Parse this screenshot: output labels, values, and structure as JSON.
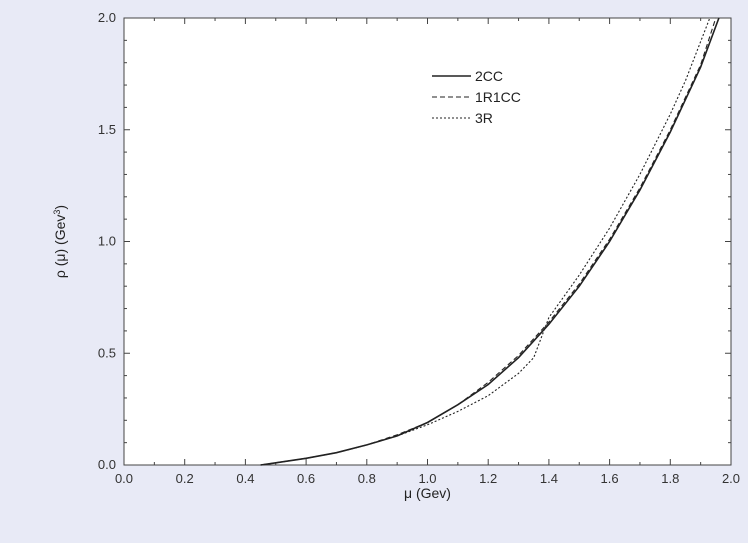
{
  "chart_data": {
    "type": "line",
    "xlabel": "μ (Gev)",
    "ylabel_parts": {
      "prefix": "ρ (μ) (Gev",
      "sup": "3",
      "suffix": ")"
    },
    "xlim": [
      0.0,
      2.0
    ],
    "ylim": [
      0.0,
      2.0
    ],
    "x_ticks": [
      "0.0",
      "0.2",
      "0.4",
      "0.6",
      "0.8",
      "1.0",
      "1.2",
      "1.4",
      "1.6",
      "1.8",
      "2.0"
    ],
    "y_ticks": [
      "0.0",
      "0.5",
      "1.0",
      "1.5",
      "2.0"
    ],
    "grid": false,
    "legend_position": "top-right",
    "series": [
      {
        "name": "2CC",
        "style": "solid",
        "x": [
          0.45,
          0.5,
          0.6,
          0.7,
          0.8,
          0.9,
          1.0,
          1.1,
          1.2,
          1.3,
          1.4,
          1.5,
          1.6,
          1.7,
          1.8,
          1.9,
          1.96
        ],
        "y": [
          0.0,
          0.01,
          0.03,
          0.055,
          0.09,
          0.13,
          0.19,
          0.27,
          0.36,
          0.48,
          0.63,
          0.8,
          1.0,
          1.23,
          1.49,
          1.78,
          2.0
        ]
      },
      {
        "name": "1R1CC",
        "style": "dashed",
        "x": [
          0.45,
          0.5,
          0.6,
          0.7,
          0.8,
          0.9,
          1.0,
          1.1,
          1.2,
          1.3,
          1.4,
          1.5,
          1.6,
          1.7,
          1.8,
          1.9,
          1.95
        ],
        "y": [
          0.0,
          0.01,
          0.03,
          0.055,
          0.09,
          0.135,
          0.19,
          0.27,
          0.37,
          0.49,
          0.64,
          0.81,
          1.01,
          1.24,
          1.5,
          1.79,
          2.0
        ]
      },
      {
        "name": "3R",
        "style": "dotted",
        "x": [
          0.45,
          0.5,
          0.6,
          0.7,
          0.8,
          0.9,
          1.0,
          1.1,
          1.2,
          1.3,
          1.35,
          1.4,
          1.5,
          1.6,
          1.7,
          1.8,
          1.85,
          1.93
        ],
        "y": [
          0.0,
          0.01,
          0.03,
          0.055,
          0.09,
          0.13,
          0.18,
          0.24,
          0.31,
          0.41,
          0.48,
          0.66,
          0.85,
          1.06,
          1.3,
          1.57,
          1.72,
          2.0
        ]
      }
    ]
  }
}
